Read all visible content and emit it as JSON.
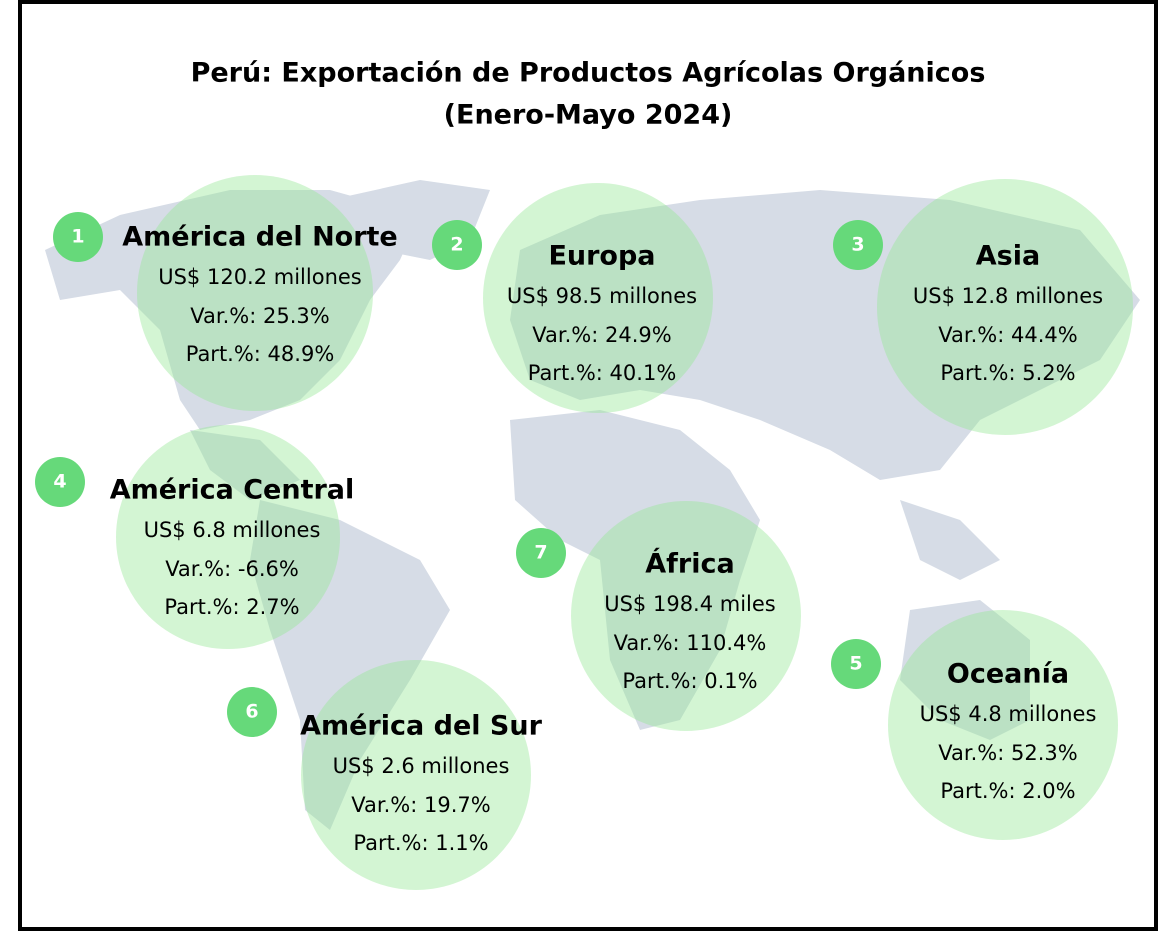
{
  "title": {
    "line1": "Perú: Exportación de Productos Agrícolas Orgánicos",
    "line2": "(Enero-Mayo 2024)"
  },
  "regions": [
    {
      "number": 1,
      "name": "América del Norte",
      "amount": "US$ 120.2 millones",
      "variation": "Var.%: 25.3%",
      "share": "Part.%: 48.9%"
    },
    {
      "number": 2,
      "name": "Europa",
      "amount": "US$ 98.5 millones",
      "variation": "Var.%: 24.9%",
      "share": "Part.%: 40.1%"
    },
    {
      "number": 3,
      "name": "Asia",
      "amount": "US$ 12.8 millones",
      "variation": "Var.%: 44.4%",
      "share": "Part.%: 5.2%"
    },
    {
      "number": 4,
      "name": "América Central",
      "amount": "US$ 6.8 millones",
      "variation": "Var.%: -6.6%",
      "share": "Part.%: 2.7%"
    },
    {
      "number": 5,
      "name": "Oceanía",
      "amount": "US$ 4.8 millones",
      "variation": "Var.%: 52.3%",
      "share": "Part.%: 2.0%"
    },
    {
      "number": 6,
      "name": "América del Sur",
      "amount": "US$ 2.6 millones",
      "variation": "Var.%: 19.7%",
      "share": "Part.%: 1.1%"
    },
    {
      "number": 7,
      "name": "África",
      "amount": "US$ 198.4 miles",
      "variation": "Var.%: 110.4%",
      "share": "Part.%: 0.1%"
    }
  ]
}
